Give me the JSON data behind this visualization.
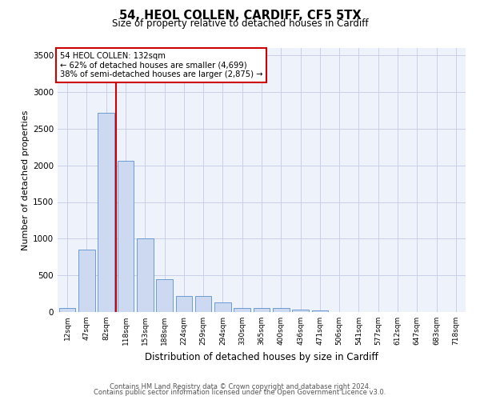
{
  "title1": "54, HEOL COLLEN, CARDIFF, CF5 5TX",
  "title2": "Size of property relative to detached houses in Cardiff",
  "xlabel": "Distribution of detached houses by size in Cardiff",
  "ylabel": "Number of detached properties",
  "categories": [
    "12sqm",
    "47sqm",
    "82sqm",
    "118sqm",
    "153sqm",
    "188sqm",
    "224sqm",
    "259sqm",
    "294sqm",
    "330sqm",
    "365sqm",
    "400sqm",
    "436sqm",
    "471sqm",
    "506sqm",
    "541sqm",
    "577sqm",
    "612sqm",
    "647sqm",
    "683sqm",
    "718sqm"
  ],
  "bar_values": [
    60,
    850,
    2720,
    2060,
    1000,
    450,
    220,
    220,
    130,
    60,
    50,
    50,
    30,
    20,
    0,
    0,
    0,
    0,
    0,
    0,
    0
  ],
  "bar_color": "#ccd9f0",
  "bar_edgecolor": "#5b8fcc",
  "vline_color": "#cc0000",
  "annotation_title": "54 HEOL COLLEN: 132sqm",
  "annotation_line1": "← 62% of detached houses are smaller (4,699)",
  "annotation_line2": "38% of semi-detached houses are larger (2,875) →",
  "annotation_box_edgecolor": "#cc0000",
  "ylim": [
    0,
    3600
  ],
  "yticks": [
    0,
    500,
    1000,
    1500,
    2000,
    2500,
    3000,
    3500
  ],
  "plot_bg_color": "#eef2fb",
  "footer1": "Contains HM Land Registry data © Crown copyright and database right 2024.",
  "footer2": "Contains public sector information licensed under the Open Government Licence v3.0."
}
